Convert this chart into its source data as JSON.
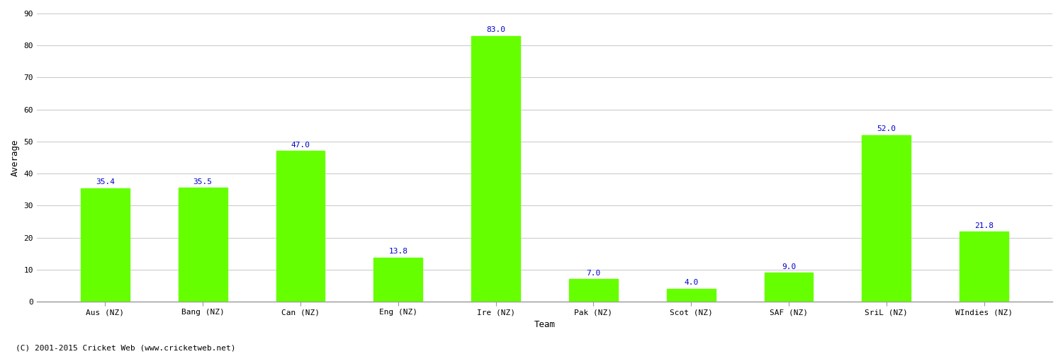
{
  "categories": [
    "Aus (NZ)",
    "Bang (NZ)",
    "Can (NZ)",
    "Eng (NZ)",
    "Ire (NZ)",
    "Pak (NZ)",
    "Scot (NZ)",
    "SAF (NZ)",
    "SriL (NZ)",
    "WIndies (NZ)"
  ],
  "values": [
    35.4,
    35.5,
    47.0,
    13.8,
    83.0,
    7.0,
    4.0,
    9.0,
    52.0,
    21.8
  ],
  "bar_color": "#66ff00",
  "bar_edge_color": "#66ff00",
  "label_color": "#0000cc",
  "ylabel": "Average",
  "xlabel": "Team",
  "ylim": [
    0,
    90
  ],
  "yticks": [
    0,
    10,
    20,
    30,
    40,
    50,
    60,
    70,
    80,
    90
  ],
  "grid_color": "#cccccc",
  "background_color": "#ffffff",
  "fig_background_color": "#ffffff",
  "label_fontsize": 8,
  "axis_fontsize": 9,
  "tick_fontsize": 8,
  "bar_width": 0.5,
  "footer": "(C) 2001-2015 Cricket Web (www.cricketweb.net)"
}
